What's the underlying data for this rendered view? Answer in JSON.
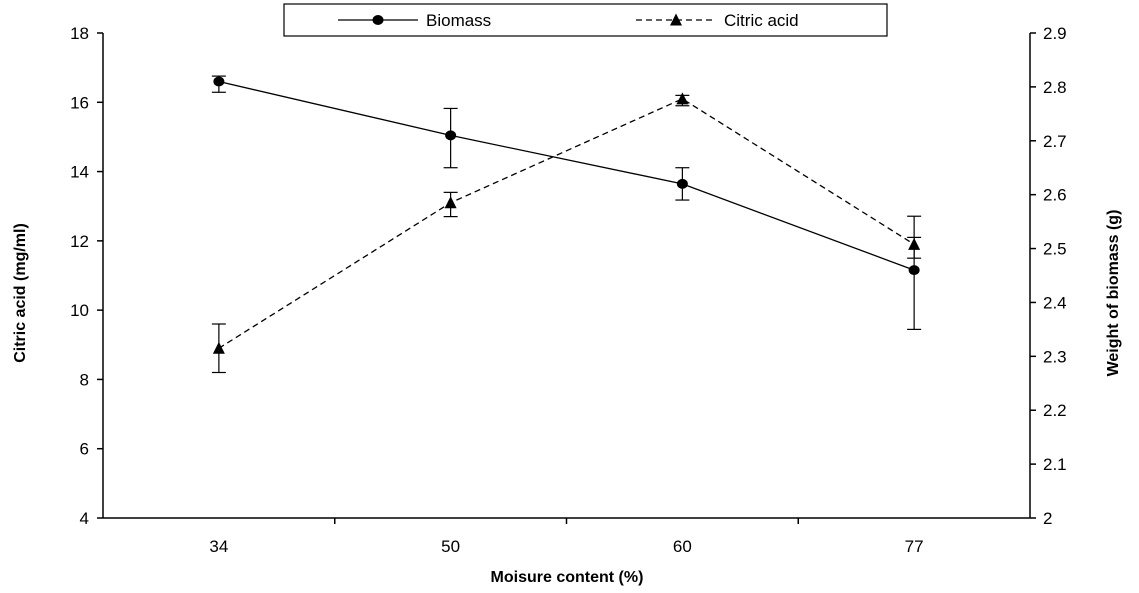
{
  "chart_data": {
    "type": "line",
    "xlabel": "Moisure content (%)",
    "ylabel_left": "Citric acid (mg/ml)",
    "ylabel_right": "Weight of biomass (g)",
    "categories": [
      "34",
      "50",
      "60",
      "77"
    ],
    "y_left_range": [
      4,
      18
    ],
    "y_left_ticks": [
      "4",
      "6",
      "8",
      "10",
      "12",
      "14",
      "16",
      "18"
    ],
    "y_right_range": [
      2,
      2.9
    ],
    "y_right_ticks": [
      "2",
      "2.1",
      "2.2",
      "2.3",
      "2.4",
      "2.5",
      "2.6",
      "2.7",
      "2.8",
      "2.9"
    ],
    "grid": false,
    "legend_position": "top-center",
    "series": [
      {
        "name": "Biomass",
        "axis": "right",
        "marker": "circle",
        "line_style": "solid",
        "values": [
          2.81,
          2.71,
          2.62,
          2.46
        ],
        "error_low": [
          2.79,
          2.65,
          2.59,
          2.35
        ],
        "error_high": [
          2.82,
          2.76,
          2.65,
          2.56
        ]
      },
      {
        "name": "Citric acid",
        "axis": "left",
        "marker": "triangle",
        "line_style": "dashed",
        "values": [
          8.9,
          13.1,
          16.1,
          11.9
        ],
        "error_low": [
          8.2,
          12.7,
          15.9,
          11.5
        ],
        "error_high": [
          9.6,
          13.4,
          16.2,
          12.1
        ]
      }
    ]
  }
}
